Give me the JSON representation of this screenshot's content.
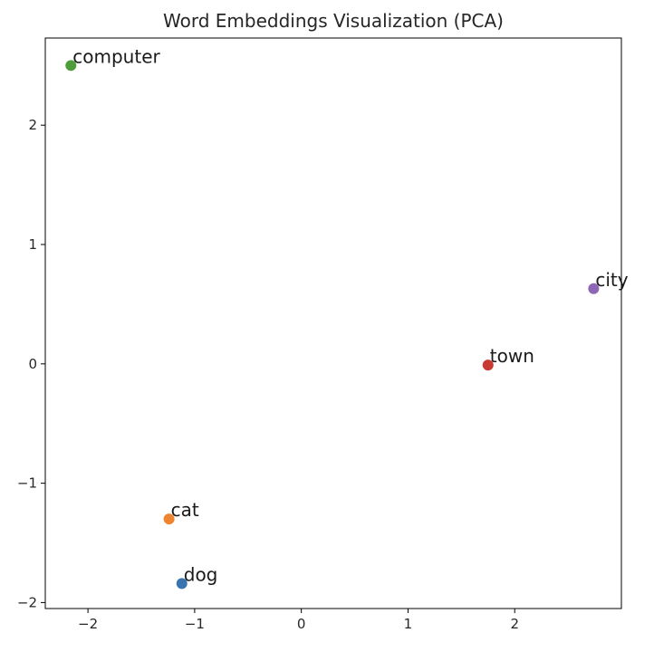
{
  "chart_data": {
    "type": "scatter",
    "title": "Word Embeddings Visualization (PCA)",
    "xlabel": "",
    "ylabel": "",
    "xlim": [
      -2.4,
      3.0
    ],
    "ylim": [
      -2.05,
      2.73
    ],
    "grid": false,
    "x_ticks": [
      {
        "value": -2,
        "label": "−2"
      },
      {
        "value": -1,
        "label": "−1"
      },
      {
        "value": 0,
        "label": "0"
      },
      {
        "value": 1,
        "label": "1"
      },
      {
        "value": 2,
        "label": "2"
      }
    ],
    "y_ticks": [
      {
        "value": -2,
        "label": "−2"
      },
      {
        "value": -1,
        "label": "−1"
      },
      {
        "value": 0,
        "label": "0"
      },
      {
        "value": 1,
        "label": "1"
      },
      {
        "value": 2,
        "label": "2"
      }
    ],
    "points": [
      {
        "label": "dog",
        "x": -1.12,
        "y": -1.84,
        "color": "#3a74b0"
      },
      {
        "label": "cat",
        "x": -1.24,
        "y": -1.3,
        "color": "#ef8530"
      },
      {
        "label": "computer",
        "x": -2.16,
        "y": 2.5,
        "color": "#4f9d3a"
      },
      {
        "label": "town",
        "x": 1.75,
        "y": -0.01,
        "color": "#c93a32"
      },
      {
        "label": "city",
        "x": 2.74,
        "y": 0.63,
        "color": "#8d67b5"
      }
    ]
  }
}
